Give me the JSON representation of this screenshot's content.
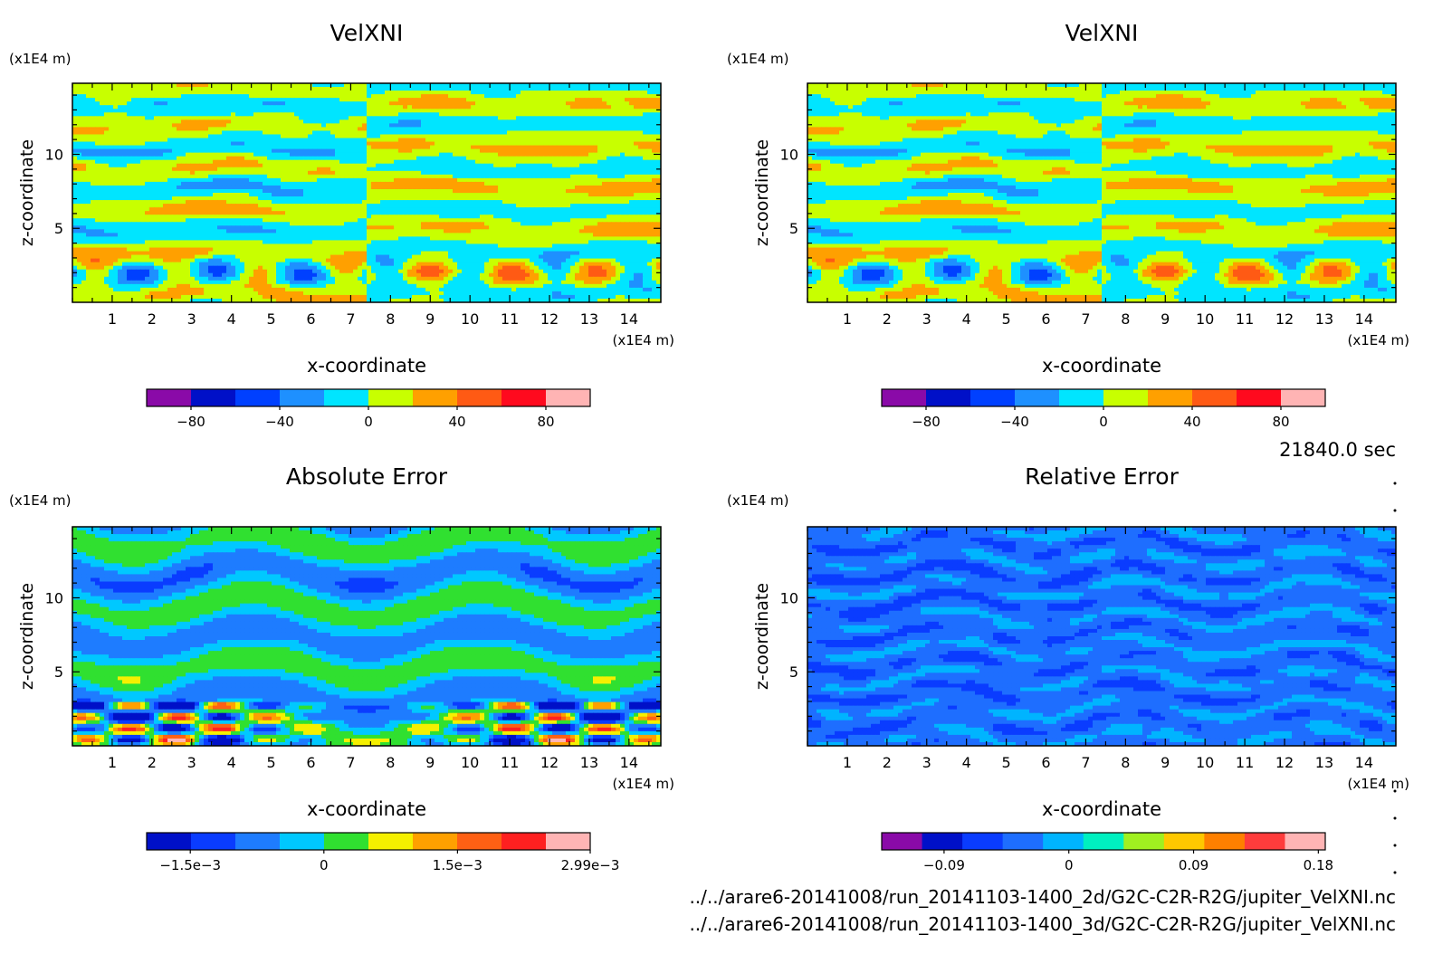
{
  "colors": {
    "velxni": [
      "#8a0aa8",
      "#0010c8",
      "#0040ff",
      "#1e90ff",
      "#00e5ff",
      "#c8ff00",
      "#ffa000",
      "#ff5a14",
      "#ff0a1e",
      "#ffb4b4"
    ],
    "abs_err": [
      "#0010c8",
      "#0a3cff",
      "#1e7cff",
      "#00c8ff",
      "#30e030",
      "#f5f000",
      "#ffa000",
      "#ff6014",
      "#ff2020",
      "#ffb4b4"
    ],
    "rel_err": [
      "#8a0aa8",
      "#0010c8",
      "#0a3cff",
      "#1e6eff",
      "#00b4ff",
      "#00f0c0",
      "#a0f020",
      "#ffc800",
      "#ff8000",
      "#ff3c3c",
      "#ffb4b4"
    ]
  },
  "annotations": {
    "time": "21840.0 sec",
    "file_2d": "../../arare6-20141008/run_20141103-1400_2d/G2C-C2R-R2G/jupiter_VelXNI.nc",
    "file_3d": "../../arare6-20141008/run_20141103-1400_3d/G2C-C2R-R2G/jupiter_VelXNI.nc"
  },
  "chart_data": [
    {
      "type": "heatmap",
      "title": "VelXNI",
      "xlabel": "x-coordinate",
      "ylabel": "z-coordinate",
      "x_unit": "(x1E4 m)",
      "y_unit": "(x1E4 m)",
      "xlim": [
        0,
        14.8
      ],
      "ylim": [
        0,
        14.8
      ],
      "x_ticks": [
        "1",
        "2",
        "3",
        "4",
        "5",
        "6",
        "7",
        "8",
        "9",
        "10",
        "11",
        "12",
        "13",
        "14"
      ],
      "y_ticks": [
        "5",
        "10"
      ],
      "colorbar": {
        "palette": "velxni",
        "min": -100,
        "max": 100,
        "tick_values": [
          -80,
          -40,
          0,
          40,
          80
        ],
        "tick_labels": [
          "−80",
          "−40",
          "0",
          "40",
          "80"
        ]
      }
    },
    {
      "type": "heatmap",
      "title": "VelXNI",
      "xlabel": "x-coordinate",
      "ylabel": "z-coordinate",
      "x_unit": "(x1E4 m)",
      "y_unit": "(x1E4 m)",
      "xlim": [
        0,
        14.8
      ],
      "ylim": [
        0,
        14.8
      ],
      "x_ticks": [
        "1",
        "2",
        "3",
        "4",
        "5",
        "6",
        "7",
        "8",
        "9",
        "10",
        "11",
        "12",
        "13",
        "14"
      ],
      "y_ticks": [
        "5",
        "10"
      ],
      "colorbar": {
        "palette": "velxni",
        "min": -100,
        "max": 100,
        "tick_values": [
          -80,
          -40,
          0,
          40,
          80
        ],
        "tick_labels": [
          "−80",
          "−40",
          "0",
          "40",
          "80"
        ]
      }
    },
    {
      "type": "heatmap",
      "title": "Absolute Error",
      "xlabel": "x-coordinate",
      "ylabel": "z-coordinate",
      "x_unit": "(x1E4 m)",
      "y_unit": "(x1E4 m)",
      "xlim": [
        0,
        14.8
      ],
      "ylim": [
        0,
        14.8
      ],
      "x_ticks": [
        "1",
        "2",
        "3",
        "4",
        "5",
        "6",
        "7",
        "8",
        "9",
        "10",
        "11",
        "12",
        "13",
        "14"
      ],
      "y_ticks": [
        "5",
        "10"
      ],
      "colorbar": {
        "palette": "abs_err",
        "min": -0.00199,
        "max": 0.00299,
        "tick_values": [
          -0.0015,
          0,
          0.0015,
          0.00299
        ],
        "tick_labels": [
          "−1.5e−3",
          "0",
          "1.5e−3",
          "2.99e−3"
        ]
      }
    },
    {
      "type": "heatmap",
      "title": "Relative Error",
      "xlabel": "x-coordinate",
      "ylabel": "z-coordinate",
      "x_unit": "(x1E4 m)",
      "y_unit": "(x1E4 m)",
      "xlim": [
        0,
        14.8
      ],
      "ylim": [
        0,
        14.8
      ],
      "x_ticks": [
        "1",
        "2",
        "3",
        "4",
        "5",
        "6",
        "7",
        "8",
        "9",
        "10",
        "11",
        "12",
        "13",
        "14"
      ],
      "y_ticks": [
        "5",
        "10"
      ],
      "colorbar": {
        "palette": "rel_err",
        "min": -0.135,
        "max": 0.185,
        "tick_values": [
          -0.09,
          0,
          0.09,
          0.18
        ],
        "tick_labels": [
          "−0.09",
          "0",
          "0.09",
          "0.18"
        ]
      }
    }
  ]
}
